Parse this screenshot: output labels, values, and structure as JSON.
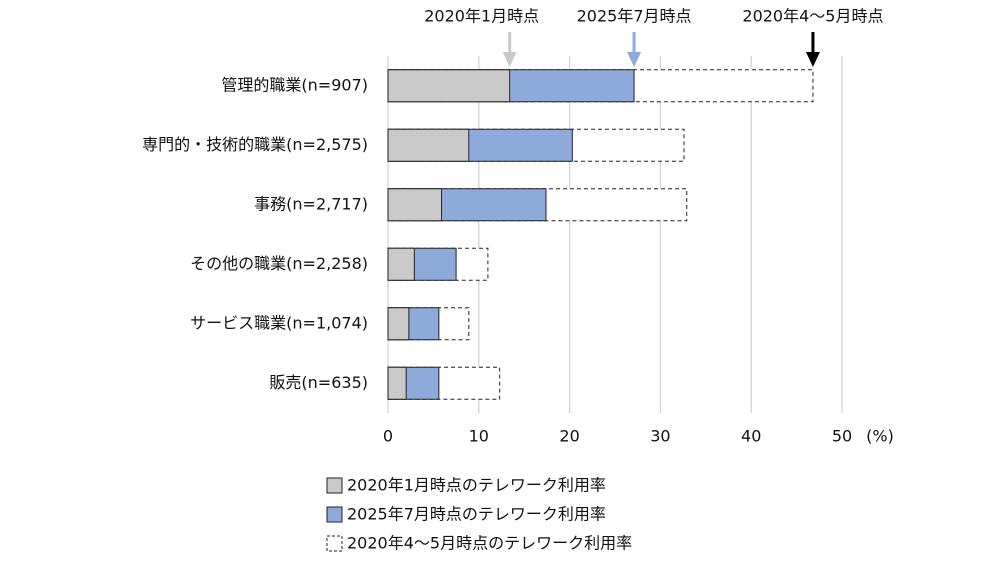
{
  "chart_data": {
    "type": "hbar-overlap",
    "categories": [
      "管理的職業(n=907)",
      "専門的・技術的職業(n=2,575)",
      "事務(n=2,717)",
      "その他の職業(n=2,258)",
      "サービス職業(n=1,074)",
      "販売(n=635)"
    ],
    "series": [
      {
        "name": "2020年1月時点のテレワーク利用率",
        "color": "#c9c9c9",
        "values": [
          13.4,
          8.9,
          5.9,
          2.9,
          2.3,
          2.0
        ]
      },
      {
        "name": "2025年7月時点のテレワーク利用率",
        "color": "#8eaadb",
        "values": [
          27.1,
          20.3,
          17.4,
          7.5,
          5.6,
          5.6
        ]
      },
      {
        "name": "2020年4～5月時点のテレワーク利用率",
        "color": "#ffffff",
        "dashed": true,
        "values": [
          46.8,
          32.6,
          32.9,
          11.0,
          8.9,
          12.3
        ]
      }
    ],
    "annotations": [
      {
        "text": "2020年1月時点",
        "arrow_color": "#c9c9c9"
      },
      {
        "text": "2025年7月時点",
        "arrow_color": "#8eaadb"
      },
      {
        "text": "2020年4～5月時点",
        "arrow_color": "#000000"
      }
    ],
    "x_unit": "(%)",
    "xlim": [
      0,
      50
    ],
    "xticks": [
      0,
      10,
      20,
      30,
      40,
      50
    ],
    "grid": true
  }
}
